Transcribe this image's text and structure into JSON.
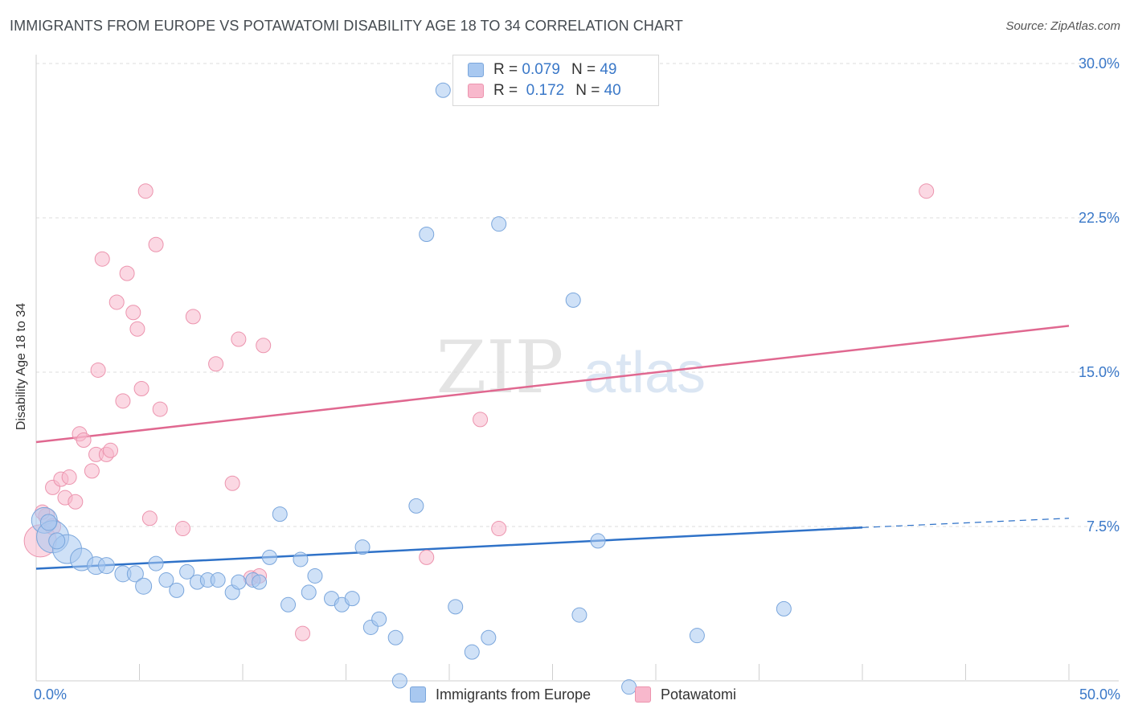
{
  "title": "IMMIGRANTS FROM EUROPE VS POTAWATOMI DISABILITY AGE 18 TO 34 CORRELATION CHART",
  "source": "Source: ZipAtlas.com",
  "watermark": {
    "zip": "ZIP",
    "atlas": "atlas"
  },
  "legend_top": [
    {
      "r_label": "R =",
      "r_value": "0.079",
      "n_label": "N =",
      "n_value": "49",
      "color": "#a8c8f0"
    },
    {
      "r_label": "R =",
      "r_value": "0.172",
      "n_label": "N =",
      "n_value": "40",
      "color": "#f8b8cc"
    }
  ],
  "legend_bottom": [
    {
      "label": "Immigrants from Europe",
      "color": "#a8c8f0"
    },
    {
      "label": "Potawatomi",
      "color": "#f8b8cc"
    }
  ],
  "colors": {
    "blue_fill": "#a8c8f0",
    "blue_stroke": "#7aa6dc",
    "blue_line": "#2f72c8",
    "pink_fill": "#f8b8cc",
    "pink_stroke": "#ec94ae",
    "pink_line": "#e06890",
    "grid": "#dddddd",
    "tick_label": "#3a78c8"
  },
  "chart_data": {
    "type": "scatter",
    "ylabel": "Disability Age 18 to 34",
    "xlim": [
      0,
      50
    ],
    "ylim": [
      0,
      30
    ],
    "x_tick_labels": [
      {
        "value": 0,
        "label": "0.0%"
      },
      {
        "value": 50,
        "label": "50.0%"
      }
    ],
    "y_tick_labels": [
      {
        "value": 7.5,
        "label": "7.5%"
      },
      {
        "value": 15,
        "label": "15.0%"
      },
      {
        "value": 22.5,
        "label": "22.5%"
      },
      {
        "value": 30,
        "label": "30.0%"
      }
    ],
    "series": [
      {
        "name": "Immigrants from Europe",
        "trend": {
          "x0": 0,
          "y0": 5.45,
          "x1": 40,
          "y1": 7.45,
          "dashed_to": 50,
          "dashed_y": 7.9
        },
        "points": [
          {
            "x": 0.4,
            "y": 7.8,
            "r": 16
          },
          {
            "x": 0.8,
            "y": 7.0,
            "r": 20
          },
          {
            "x": 1.5,
            "y": 6.4,
            "r": 18
          },
          {
            "x": 2.2,
            "y": 5.9,
            "r": 14
          },
          {
            "x": 2.9,
            "y": 5.6,
            "r": 11
          },
          {
            "x": 3.4,
            "y": 5.6,
            "r": 10
          },
          {
            "x": 4.2,
            "y": 5.2,
            "r": 10
          },
          {
            "x": 4.8,
            "y": 5.2,
            "r": 10
          },
          {
            "x": 5.2,
            "y": 4.6,
            "r": 10
          },
          {
            "x": 5.8,
            "y": 5.7,
            "r": 9
          },
          {
            "x": 6.3,
            "y": 4.9,
            "r": 9
          },
          {
            "x": 6.8,
            "y": 4.4,
            "r": 9
          },
          {
            "x": 7.3,
            "y": 5.3,
            "r": 9
          },
          {
            "x": 7.8,
            "y": 4.8,
            "r": 9
          },
          {
            "x": 8.3,
            "y": 4.9,
            "r": 9
          },
          {
            "x": 8.8,
            "y": 4.9,
            "r": 9
          },
          {
            "x": 9.5,
            "y": 4.3,
            "r": 9
          },
          {
            "x": 9.8,
            "y": 4.8,
            "r": 9
          },
          {
            "x": 10.5,
            "y": 4.9,
            "r": 9
          },
          {
            "x": 10.8,
            "y": 4.8,
            "r": 9
          },
          {
            "x": 11.3,
            "y": 6.0,
            "r": 9
          },
          {
            "x": 11.8,
            "y": 8.1,
            "r": 9
          },
          {
            "x": 12.2,
            "y": 3.7,
            "r": 9
          },
          {
            "x": 12.8,
            "y": 5.9,
            "r": 9
          },
          {
            "x": 13.2,
            "y": 4.3,
            "r": 9
          },
          {
            "x": 13.5,
            "y": 5.1,
            "r": 9
          },
          {
            "x": 14.3,
            "y": 4.0,
            "r": 9
          },
          {
            "x": 14.8,
            "y": 3.7,
            "r": 9
          },
          {
            "x": 15.3,
            "y": 4.0,
            "r": 9
          },
          {
            "x": 15.8,
            "y": 6.5,
            "r": 9
          },
          {
            "x": 16.2,
            "y": 2.6,
            "r": 9
          },
          {
            "x": 16.6,
            "y": 3.0,
            "r": 9
          },
          {
            "x": 17.4,
            "y": 2.1,
            "r": 9
          },
          {
            "x": 17.6,
            "y": 0.0,
            "r": 9
          },
          {
            "x": 18.4,
            "y": 8.5,
            "r": 9
          },
          {
            "x": 18.9,
            "y": 21.7,
            "r": 9
          },
          {
            "x": 19.7,
            "y": 28.7,
            "r": 9
          },
          {
            "x": 20.3,
            "y": 3.6,
            "r": 9
          },
          {
            "x": 21.1,
            "y": 1.4,
            "r": 9
          },
          {
            "x": 21.9,
            "y": 2.1,
            "r": 9
          },
          {
            "x": 22.4,
            "y": 22.2,
            "r": 9
          },
          {
            "x": 26.3,
            "y": 3.2,
            "r": 9
          },
          {
            "x": 26.0,
            "y": 18.5,
            "r": 9
          },
          {
            "x": 27.2,
            "y": 6.8,
            "r": 9
          },
          {
            "x": 28.7,
            "y": -0.3,
            "r": 9
          },
          {
            "x": 32.0,
            "y": 2.2,
            "r": 9
          },
          {
            "x": 36.2,
            "y": 3.5,
            "r": 9
          },
          {
            "x": 0.6,
            "y": 7.7,
            "r": 10
          },
          {
            "x": 1.0,
            "y": 6.8,
            "r": 10
          }
        ]
      },
      {
        "name": "Potawatomi",
        "trend": {
          "x0": 0,
          "y0": 11.6,
          "x1": 50,
          "y1": 17.25
        },
        "points": [
          {
            "x": 0.2,
            "y": 6.8,
            "r": 20
          },
          {
            "x": 0.5,
            "y": 8.0,
            "r": 10
          },
          {
            "x": 0.8,
            "y": 7.5,
            "r": 10
          },
          {
            "x": 0.8,
            "y": 9.4,
            "r": 9
          },
          {
            "x": 1.2,
            "y": 9.8,
            "r": 9
          },
          {
            "x": 1.4,
            "y": 8.9,
            "r": 9
          },
          {
            "x": 1.6,
            "y": 9.9,
            "r": 9
          },
          {
            "x": 1.9,
            "y": 8.7,
            "r": 9
          },
          {
            "x": 2.1,
            "y": 12.0,
            "r": 9
          },
          {
            "x": 2.3,
            "y": 11.7,
            "r": 9
          },
          {
            "x": 2.7,
            "y": 10.2,
            "r": 9
          },
          {
            "x": 2.9,
            "y": 11.0,
            "r": 9
          },
          {
            "x": 3.0,
            "y": 15.1,
            "r": 9
          },
          {
            "x": 3.2,
            "y": 20.5,
            "r": 9
          },
          {
            "x": 3.4,
            "y": 11.0,
            "r": 9
          },
          {
            "x": 3.6,
            "y": 11.2,
            "r": 9
          },
          {
            "x": 3.9,
            "y": 18.4,
            "r": 9
          },
          {
            "x": 4.2,
            "y": 13.6,
            "r": 9
          },
          {
            "x": 4.4,
            "y": 19.8,
            "r": 9
          },
          {
            "x": 4.7,
            "y": 17.9,
            "r": 9
          },
          {
            "x": 4.9,
            "y": 17.1,
            "r": 9
          },
          {
            "x": 5.1,
            "y": 14.2,
            "r": 9
          },
          {
            "x": 5.3,
            "y": 23.8,
            "r": 9
          },
          {
            "x": 5.5,
            "y": 7.9,
            "r": 9
          },
          {
            "x": 5.8,
            "y": 21.2,
            "r": 9
          },
          {
            "x": 6.0,
            "y": 13.2,
            "r": 9
          },
          {
            "x": 7.1,
            "y": 7.4,
            "r": 9
          },
          {
            "x": 7.6,
            "y": 17.7,
            "r": 9
          },
          {
            "x": 8.7,
            "y": 15.4,
            "r": 9
          },
          {
            "x": 9.5,
            "y": 9.6,
            "r": 9
          },
          {
            "x": 9.8,
            "y": 16.6,
            "r": 9
          },
          {
            "x": 10.4,
            "y": 5.0,
            "r": 9
          },
          {
            "x": 10.8,
            "y": 5.1,
            "r": 9
          },
          {
            "x": 11.0,
            "y": 16.3,
            "r": 9
          },
          {
            "x": 12.9,
            "y": 2.3,
            "r": 9
          },
          {
            "x": 18.9,
            "y": 6.0,
            "r": 9
          },
          {
            "x": 21.5,
            "y": 12.7,
            "r": 9
          },
          {
            "x": 22.4,
            "y": 7.4,
            "r": 9
          },
          {
            "x": 43.1,
            "y": 23.8,
            "r": 9
          },
          {
            "x": 0.3,
            "y": 8.2,
            "r": 9
          }
        ]
      }
    ]
  }
}
